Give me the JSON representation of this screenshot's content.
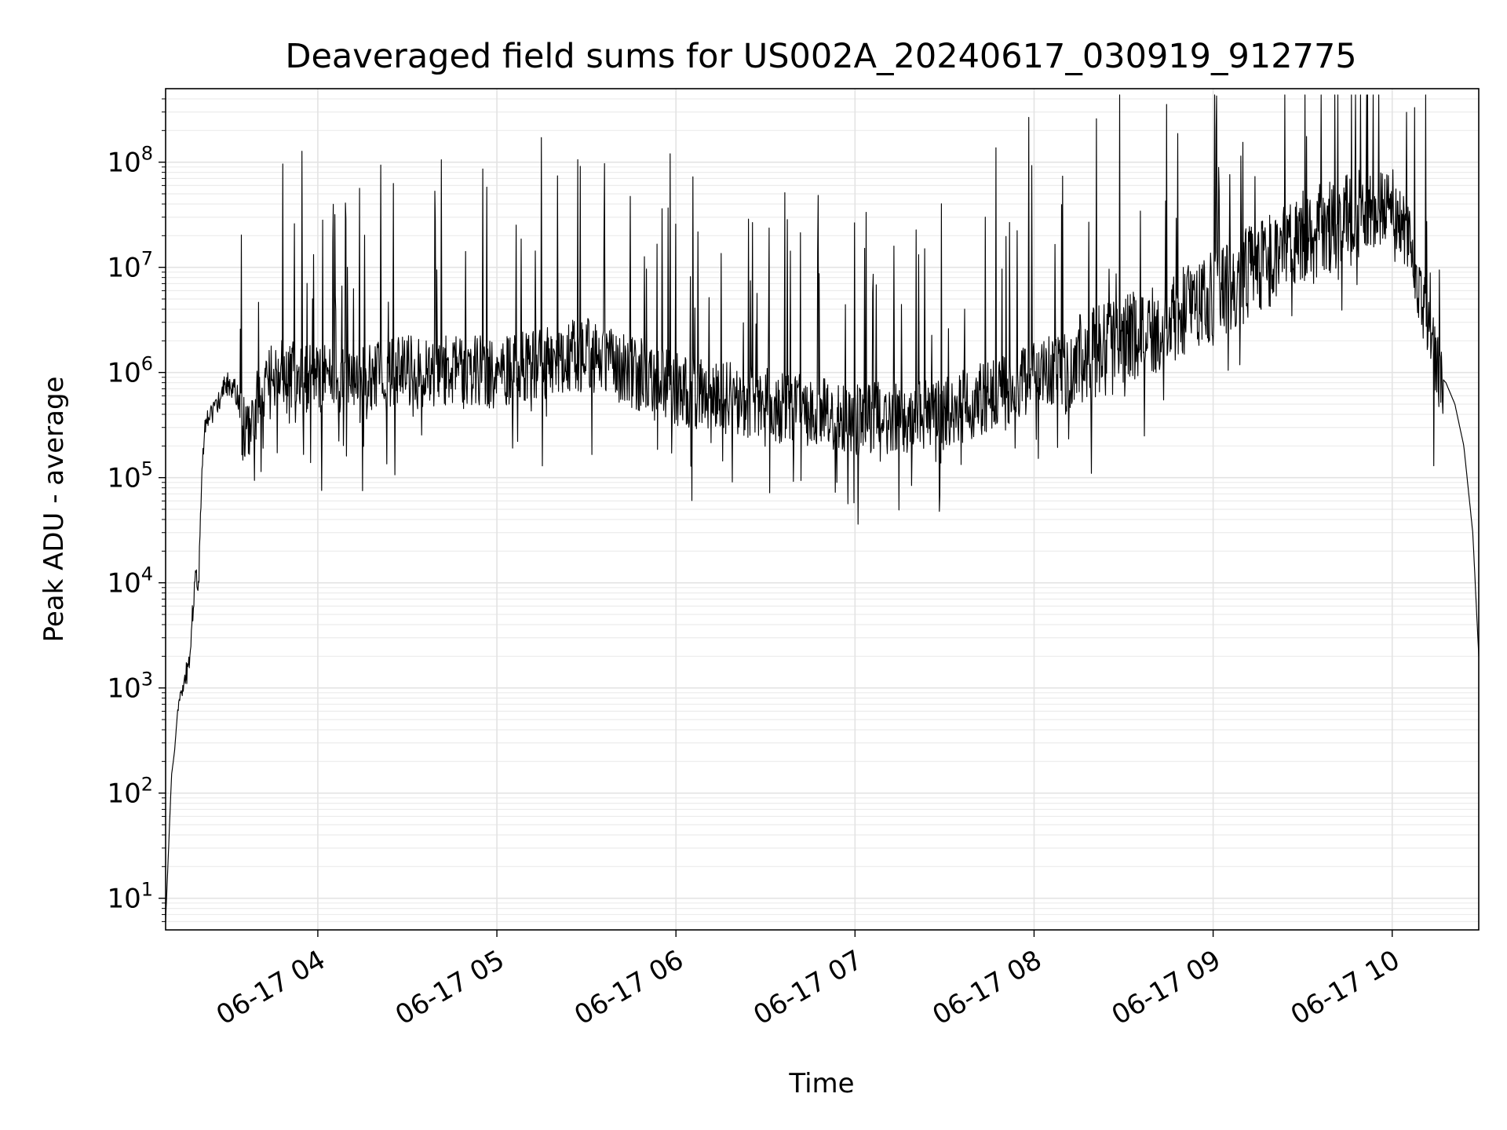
{
  "chart_data": {
    "type": "line",
    "title": "Deaveraged field sums for US002A_20240617_030919_912775",
    "xlabel": "Time",
    "ylabel": "Peak ADU - average",
    "yscale": "log",
    "grid": true,
    "line_color": "#000000",
    "xlim": [
      "06-17 03:09",
      "06-17 10:29"
    ],
    "ylim": [
      5,
      500000000
    ],
    "x_ticks": [
      "06-17 04",
      "06-17 05",
      "06-17 06",
      "06-17 07",
      "06-17 08",
      "06-17 09",
      "06-17 10"
    ],
    "y_ticks": [
      {
        "base": "10",
        "exp": "1",
        "value": 10
      },
      {
        "base": "10",
        "exp": "2",
        "value": 100
      },
      {
        "base": "10",
        "exp": "3",
        "value": 1000
      },
      {
        "base": "10",
        "exp": "4",
        "value": 10000
      },
      {
        "base": "10",
        "exp": "5",
        "value": 100000
      },
      {
        "base": "10",
        "exp": "6",
        "value": 1000000
      },
      {
        "base": "10",
        "exp": "7",
        "value": 10000000
      },
      {
        "base": "10",
        "exp": "8",
        "value": 100000000
      }
    ],
    "series": [
      {
        "x": [
          "06-17 03:09",
          "06-17 03:10",
          "06-17 03:11",
          "06-17 03:12",
          "06-17 03:13",
          "06-17 03:15",
          "06-17 03:17",
          "06-17 03:19",
          "06-17 03:20",
          "06-17 03:21",
          "06-17 03:22",
          "06-17 03:24",
          "06-17 03:26",
          "06-17 03:28",
          "06-17 03:30",
          "06-17 03:33",
          "06-17 03:35",
          "06-17 03:40",
          "06-17 03:45",
          "06-17 03:50",
          "06-17 04:00",
          "06-17 04:30",
          "06-17 05:00",
          "06-17 05:30",
          "06-17 06:00",
          "06-17 06:30",
          "06-17 07:00",
          "06-17 07:30",
          "06-17 08:00",
          "06-17 08:30",
          "06-17 09:00",
          "06-17 09:30",
          "06-17 10:00",
          "06-17 10:05",
          "06-17 10:10",
          "06-17 10:15",
          "06-17 10:18",
          "06-17 10:21",
          "06-17 10:24",
          "06-17 10:27",
          "06-17 10:29"
        ],
        "y": [
          6,
          30,
          150,
          250,
          600,
          900,
          2000,
          12000,
          8000,
          100000,
          300000,
          400000,
          500000,
          700000,
          800000,
          600000,
          300000,
          500000,
          900000,
          1000000,
          800000,
          1000000,
          1000000,
          1500000,
          700000,
          500000,
          350000,
          400000,
          900000,
          2000000,
          5000000,
          20000000,
          40000000,
          20000000,
          5000000,
          1000000,
          800000,
          500000,
          200000,
          30000,
          2000
        ]
      }
    ]
  }
}
